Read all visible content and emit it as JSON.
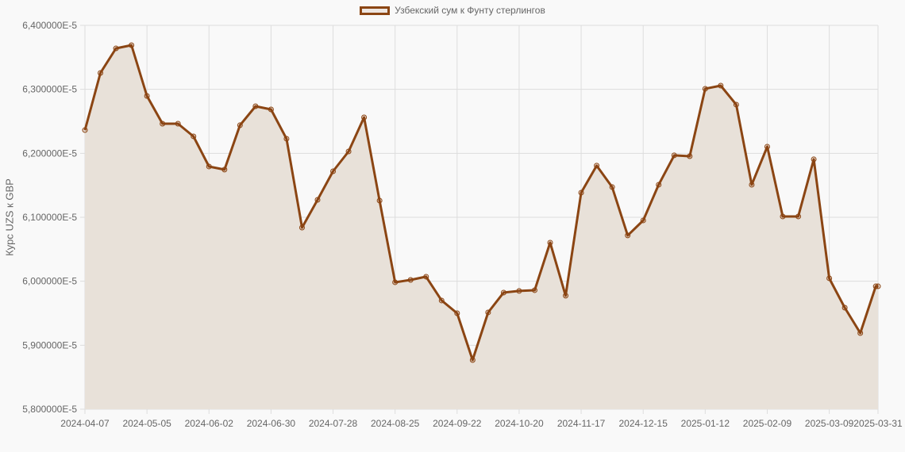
{
  "chart_data": {
    "type": "area",
    "title": "",
    "legend": [
      "Узбекский сум к Фунту стерлингов"
    ],
    "legend_position": "top",
    "xlabel": "",
    "ylabel": "Курс UZS к GBP",
    "ylim": [
      5.8e-05,
      6.4e-05
    ],
    "y_ticks": [
      "6,400000E-5",
      "6,300000E-5",
      "6,200000E-5",
      "6,100000E-5",
      "6,000000E-5",
      "5,900000E-5",
      "5,800000E-5"
    ],
    "x_ticks": [
      "2024-04-07",
      "2024-05-05",
      "2024-06-02",
      "2024-06-30",
      "2024-07-28",
      "2024-08-25",
      "2024-09-22",
      "2024-10-20",
      "2024-11-17",
      "2024-12-15",
      "2025-01-12",
      "2025-02-09",
      "2025-03-09",
      "2025-03-31"
    ],
    "grid": true,
    "colors": {
      "line": "#8b4513",
      "fill": "rgba(139,69,19,0.1)",
      "grid": "#dddddd"
    },
    "series": [
      {
        "name": "Узбекский сум к Фунту стерлингов",
        "x": [
          "2024-04-07",
          "2024-04-14",
          "2024-04-21",
          "2024-04-28",
          "2024-05-05",
          "2024-05-12",
          "2024-05-19",
          "2024-05-26",
          "2024-06-02",
          "2024-06-09",
          "2024-06-16",
          "2024-06-23",
          "2024-06-30",
          "2024-07-07",
          "2024-07-14",
          "2024-07-21",
          "2024-07-28",
          "2024-08-04",
          "2024-08-11",
          "2024-08-18",
          "2024-08-25",
          "2024-09-01",
          "2024-09-08",
          "2024-09-15",
          "2024-09-22",
          "2024-09-29",
          "2024-10-06",
          "2024-10-13",
          "2024-10-20",
          "2024-10-27",
          "2024-11-03",
          "2024-11-10",
          "2024-11-17",
          "2024-11-24",
          "2024-12-01",
          "2024-12-08",
          "2024-12-15",
          "2024-12-22",
          "2024-12-29",
          "2025-01-05",
          "2025-01-12",
          "2025-01-19",
          "2025-01-26",
          "2025-02-02",
          "2025-02-09",
          "2025-02-16",
          "2025-02-23",
          "2025-03-02",
          "2025-03-09",
          "2025-03-16",
          "2025-03-23",
          "2025-03-30",
          "2025-03-31"
        ],
        "values": [
          6.2363e-05,
          6.3256e-05,
          6.364e-05,
          6.369e-05,
          6.2897e-05,
          6.2463e-05,
          6.2463e-05,
          6.2265e-05,
          6.1794e-05,
          6.1745e-05,
          6.2439e-05,
          6.2736e-05,
          6.2686e-05,
          6.2228e-05,
          6.0839e-05,
          6.1273e-05,
          6.1719e-05,
          6.2029e-05,
          6.2562e-05,
          6.1261e-05,
          5.9984e-05,
          6.0021e-05,
          6.0071e-05,
          5.9699e-05,
          5.95e-05,
          5.8769e-05,
          5.9513e-05,
          5.9823e-05,
          5.9848e-05,
          5.986e-05,
          6.0604e-05,
          5.9774e-05,
          6.1385e-05,
          6.1807e-05,
          6.1472e-05,
          6.0716e-05,
          6.0951e-05,
          6.1509e-05,
          6.1968e-05,
          6.1955e-05,
          6.3009e-05,
          6.3058e-05,
          6.2761e-05,
          6.1509e-05,
          6.2104e-05,
          6.1013e-05,
          6.1013e-05,
          6.1906e-05,
          6.0046e-05,
          5.9587e-05,
          5.919e-05,
          5.9921e-05,
          5.9921e-05
        ]
      }
    ]
  }
}
